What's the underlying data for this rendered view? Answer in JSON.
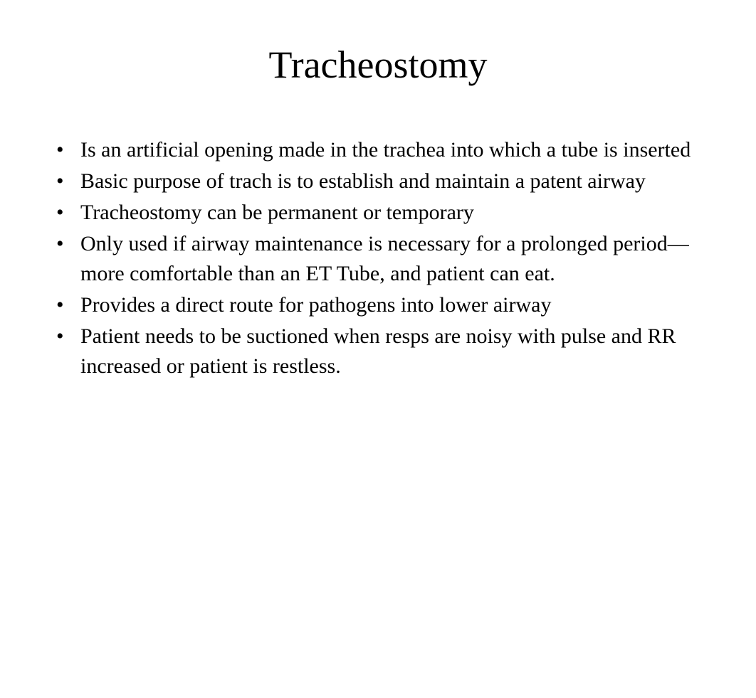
{
  "slide": {
    "title": "Tracheostomy",
    "title_fontsize": 54,
    "body_fontsize": 30,
    "background_color": "#ffffff",
    "text_color": "#000000",
    "font_family": "Times New Roman",
    "bullets": [
      "Is an artificial opening made in the trachea into which a tube is inserted",
      "Basic purpose of trach is to establish and maintain a patent airway",
      "Tracheostomy can be permanent or temporary",
      "Only used if airway maintenance is necessary for a prolonged period—more comfortable than an ET Tube, and patient can eat.",
      "Provides a direct route for pathogens into lower airway",
      "Patient needs to be suctioned when resps are noisy with pulse and RR increased or patient is restless."
    ]
  }
}
